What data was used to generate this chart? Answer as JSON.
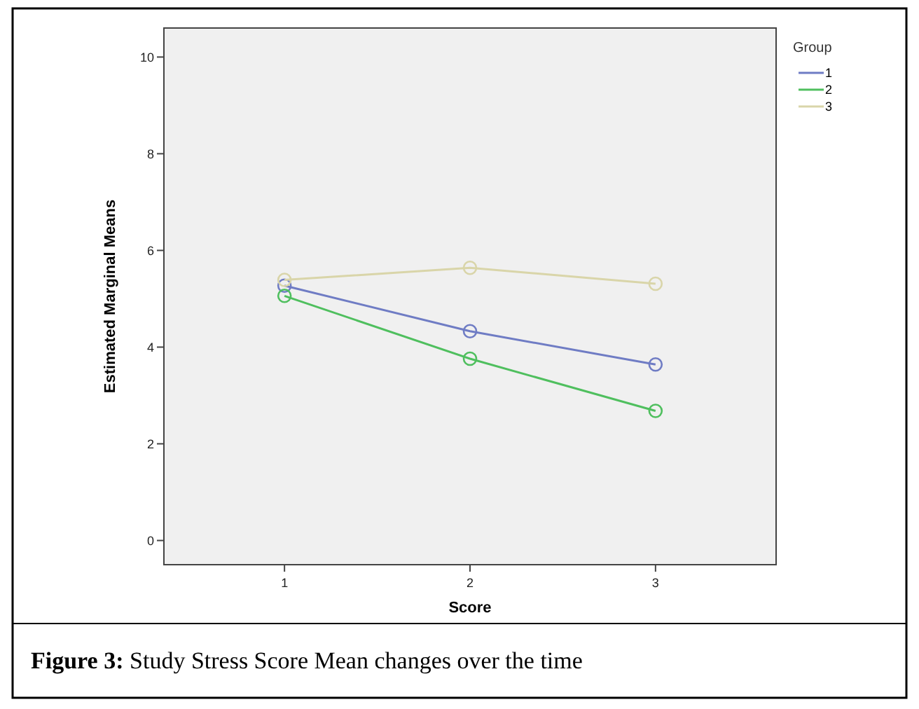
{
  "chart_data": {
    "type": "line",
    "title": "Figure 3: Study Stress Score Mean changes over the time",
    "xlabel": "Score",
    "ylabel": "Estimated Marginal Means",
    "legend_title": "Group",
    "categories": [
      "1",
      "2",
      "3"
    ],
    "series": [
      {
        "name": "1",
        "color": "#6f7cc4",
        "values": [
          5.27,
          4.33,
          3.64
        ]
      },
      {
        "name": "2",
        "color": "#4fbf5e",
        "values": [
          5.06,
          3.76,
          2.68
        ]
      },
      {
        "name": "3",
        "color": "#d9d5a9",
        "values": [
          5.39,
          5.64,
          5.31
        ]
      }
    ],
    "ylim": [
      -0.5,
      10.6
    ],
    "yticks": [
      0,
      2,
      4,
      6,
      8,
      10
    ],
    "grid": false,
    "legend": "right",
    "marker": "circle",
    "line_style": "solid"
  }
}
